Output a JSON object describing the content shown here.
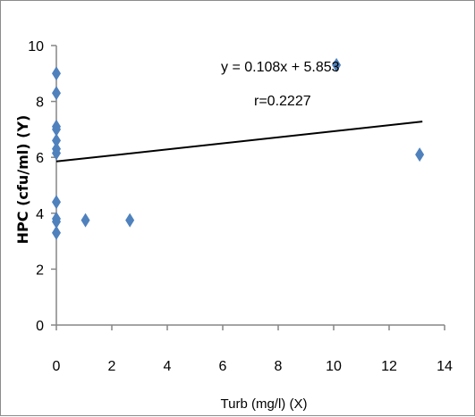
{
  "chart_data": {
    "type": "scatter",
    "title": "",
    "xlabel": "Turb (mg/l) (X)",
    "ylabel": "HPC (cfu/ml) (Y)",
    "xlim": [
      0,
      14
    ],
    "ylim": [
      0,
      10
    ],
    "x_ticks": [
      0,
      2,
      4,
      6,
      8,
      10,
      12,
      14
    ],
    "y_ticks": [
      0,
      2,
      4,
      6,
      8,
      10
    ],
    "grid": false,
    "legend": false,
    "marker_color": "#4f81bd",
    "trendline_color": "#000000",
    "points": [
      {
        "x": 0,
        "y": 9.0
      },
      {
        "x": 0,
        "y": 8.3
      },
      {
        "x": 0,
        "y": 7.1
      },
      {
        "x": 0,
        "y": 7.0
      },
      {
        "x": 0,
        "y": 6.6
      },
      {
        "x": 0,
        "y": 6.3
      },
      {
        "x": 0,
        "y": 6.15
      },
      {
        "x": 0,
        "y": 4.4
      },
      {
        "x": 0,
        "y": 3.8
      },
      {
        "x": 0,
        "y": 3.7
      },
      {
        "x": 0,
        "y": 3.3
      },
      {
        "x": 1.05,
        "y": 3.75
      },
      {
        "x": 2.65,
        "y": 3.75
      },
      {
        "x": 10.1,
        "y": 9.3
      },
      {
        "x": 13.1,
        "y": 6.1
      }
    ],
    "trendline": {
      "slope": 0.108,
      "intercept": 5.853,
      "x_range": [
        0,
        13.2
      ]
    },
    "annotations": {
      "equation": "y = 0.108x + 5.853",
      "r_value": "r=0.2227"
    }
  }
}
